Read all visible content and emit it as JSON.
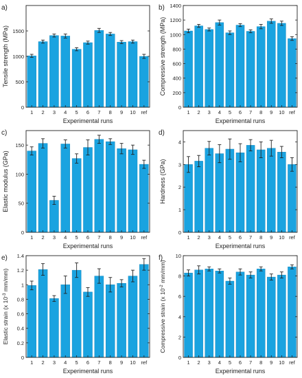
{
  "colors": {
    "bar": "#1aa3e0",
    "bar_edge": "#0d7fb5",
    "axis": "#222222",
    "errorbar": "#222222"
  },
  "chart_data": [
    {
      "panel": "a)",
      "type": "bar",
      "categories": [
        "1",
        "2",
        "3",
        "4",
        "5",
        "6",
        "7",
        "8",
        "9",
        "10",
        "ref"
      ],
      "values": [
        1010,
        1290,
        1410,
        1400,
        1140,
        1270,
        1510,
        1440,
        1280,
        1290,
        1000
      ],
      "errors": [
        30,
        30,
        30,
        40,
        30,
        30,
        40,
        30,
        30,
        30,
        40
      ],
      "xlabel": "Experimental runs",
      "ylabel": "Tensile strength (MPa)",
      "ylim": [
        0,
        2000
      ],
      "yticks": [
        0,
        500,
        1000,
        1500
      ]
    },
    {
      "panel": "b)",
      "type": "bar",
      "categories": [
        "1",
        "2",
        "3",
        "4",
        "5",
        "6",
        "7",
        "8",
        "9",
        "10",
        "ref"
      ],
      "values": [
        1050,
        1120,
        1070,
        1165,
        1025,
        1130,
        1045,
        1110,
        1185,
        1155,
        945
      ],
      "errors": [
        25,
        20,
        20,
        35,
        25,
        20,
        20,
        30,
        30,
        30,
        25
      ],
      "xlabel": "Experimental runs",
      "ylabel": "Compressive strength (MPa)",
      "ylim": [
        0,
        1400
      ],
      "yticks": [
        0,
        200,
        400,
        600,
        800,
        1000,
        1200,
        1400
      ]
    },
    {
      "panel": "c)",
      "type": "bar",
      "categories": [
        "1",
        "2",
        "3",
        "4",
        "5",
        "6",
        "7",
        "8",
        "9",
        "10",
        "ref"
      ],
      "values": [
        140,
        153,
        55,
        152,
        127,
        146,
        160,
        156,
        144,
        142,
        117
      ],
      "errors": [
        7,
        8,
        7,
        7,
        8,
        13,
        7,
        5,
        9,
        8,
        7
      ],
      "xlabel": "Experimental runs",
      "ylabel": "Elastic modulus (GPa)",
      "ylim": [
        0,
        175
      ],
      "yticks": [
        0,
        50,
        100,
        150
      ]
    },
    {
      "panel": "d)",
      "type": "bar",
      "categories": [
        "1",
        "2",
        "3",
        "4",
        "5",
        "6",
        "7",
        "8",
        "9",
        "10",
        "ref"
      ],
      "values": [
        3.0,
        3.15,
        3.72,
        3.48,
        3.68,
        3.52,
        3.85,
        3.65,
        3.72,
        3.55,
        3.0
      ],
      "errors": [
        0.35,
        0.25,
        0.3,
        0.4,
        0.45,
        0.4,
        0.25,
        0.35,
        0.35,
        0.25,
        0.3
      ],
      "xlabel": "Experimental runs",
      "ylabel": "Hardness (GPa)",
      "ylim": [
        0,
        4.5
      ],
      "yticks": [
        0,
        1,
        2,
        3,
        4
      ]
    },
    {
      "panel": "e)",
      "type": "bar",
      "categories": [
        "1",
        "2",
        "3",
        "4",
        "5",
        "6",
        "7",
        "8",
        "9",
        "10",
        "ref"
      ],
      "values": [
        0.99,
        1.21,
        0.81,
        1.0,
        1.2,
        0.9,
        1.12,
        1.0,
        1.02,
        1.12,
        1.28
      ],
      "errors": [
        0.06,
        0.08,
        0.04,
        0.12,
        0.1,
        0.06,
        0.1,
        0.1,
        0.05,
        0.08,
        0.08
      ],
      "xlabel": "Experimental runs",
      "ylabel_main": "Elastic strain (x 10",
      "ylabel_sup": "-3",
      "ylabel_tail": " mm/mm)",
      "ylim": [
        0,
        1.4
      ],
      "yticks": [
        0,
        0.2,
        0.4,
        0.6,
        0.8,
        1.0,
        1.2,
        1.4
      ],
      "yticklabels": [
        "0",
        "0.2",
        "0.4",
        "0.6",
        "0.8",
        "1",
        "1.2",
        "1.4"
      ]
    },
    {
      "panel": "f)",
      "type": "bar",
      "categories": [
        "1",
        "2",
        "3",
        "4",
        "5",
        "6",
        "7",
        "8",
        "9",
        "10",
        "ref"
      ],
      "values": [
        8.3,
        8.6,
        8.7,
        8.5,
        7.5,
        8.4,
        8.1,
        8.7,
        7.9,
        8.1,
        8.9
      ],
      "errors": [
        0.3,
        0.4,
        0.2,
        0.2,
        0.3,
        0.3,
        0.3,
        0.2,
        0.3,
        0.3,
        0.2
      ],
      "xlabel": "Experimental runs",
      "ylabel_main": "Compressive  strain (x 10",
      "ylabel_sup": "-2",
      "ylabel_tail": " mm/mm)",
      "ylim": [
        0,
        10
      ],
      "yticks": [
        0,
        2,
        4,
        6,
        8,
        10
      ]
    }
  ]
}
